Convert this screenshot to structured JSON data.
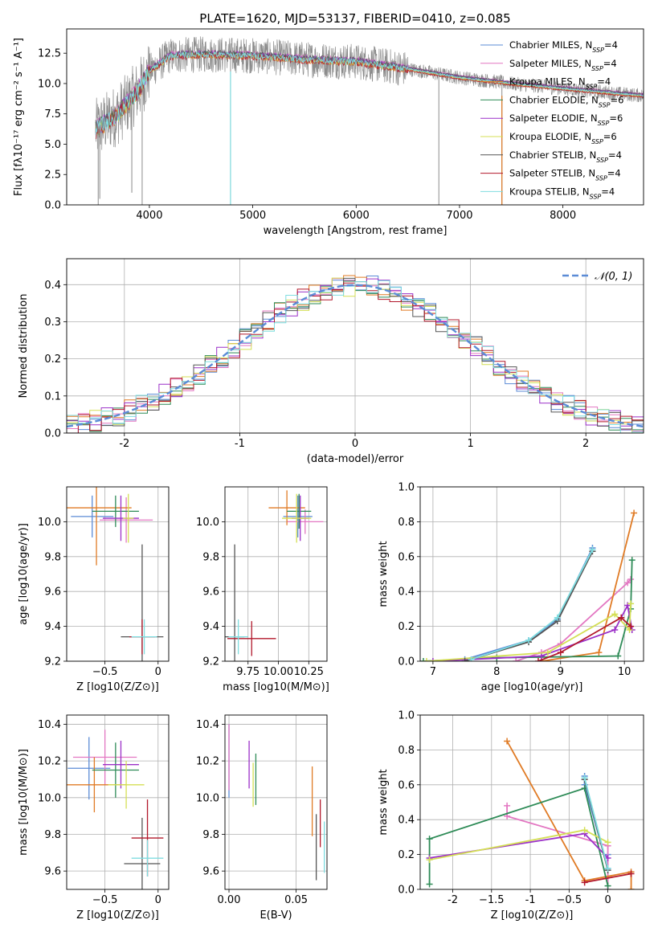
{
  "figure": {
    "title": "PLATE=1620, MJD=53137, FIBERID=0410, z=0.085"
  },
  "series_styles": [
    {
      "name": "Chabrier MILES, N$_{SSP}$=4",
      "label_main": "Chabrier MILES, N",
      "color": "#5b8bd6"
    },
    {
      "name": "Salpeter MILES, N$_{SSP}$=4",
      "label_main": "Salpeter MILES, N",
      "color": "#e377c2"
    },
    {
      "name": "Kroupa MILES, N$_{SSP}$=4",
      "label_main": "Kroupa MILES, N",
      "color": "#e07b25"
    },
    {
      "name": "Chabrier ELODIE, N$_{SSP}$=6",
      "label_main": "Chabrier ELODIE, N",
      "color": "#2e8b57"
    },
    {
      "name": "Salpeter ELODIE, N$_{SSP}$=6",
      "label_main": "Salpeter ELODIE, N",
      "color": "#9b30c8"
    },
    {
      "name": "Kroupa ELODIE, N$_{SSP}$=6",
      "label_main": "Kroupa ELODIE, N",
      "color": "#d4df55"
    },
    {
      "name": "Chabrier STELIB, N$_{SSP}$=4",
      "label_main": "Chabrier STELIB, N",
      "color": "#555555"
    },
    {
      "name": "Salpeter STELIB, N$_{SSP}$=4",
      "label_main": "Salpeter STELIB, N",
      "color": "#b2182b"
    },
    {
      "name": "Kroupa STELIB, N$_{SSP}$=4",
      "label_main": "Kroupa STELIB, N",
      "color": "#7fdde0"
    }
  ],
  "legend_subscript": "SSP",
  "legend_counts": [
    "=4",
    "=4",
    "=4",
    "=6",
    "=6",
    "=6",
    "=4",
    "=4",
    "=4"
  ],
  "chart_data": [
    {
      "id": "spectrum",
      "type": "line",
      "xlabel": "wavelength [Angstrom, rest frame]",
      "ylabel": "Flux [fλ10⁻¹⁷ erg cm⁻² s⁻¹ A⁻¹]",
      "xlim": [
        3200,
        8780
      ],
      "ylim": [
        0,
        14.5
      ],
      "xticks": [
        4000,
        5000,
        6000,
        7000,
        8000
      ],
      "yticks": [
        0.0,
        2.5,
        5.0,
        7.5,
        10.0,
        12.5
      ],
      "grid": false,
      "legend": "right",
      "data_color": "#8c8c8c",
      "model_color": "#7fdde0",
      "continuum": [
        [
          3480,
          6.2
        ],
        [
          3700,
          7.5
        ],
        [
          3900,
          9.5
        ],
        [
          4000,
          11.0
        ],
        [
          4200,
          12.3
        ],
        [
          4500,
          12.4
        ],
        [
          5000,
          12.3
        ],
        [
          5500,
          12.0
        ],
        [
          6000,
          11.8
        ],
        [
          6500,
          11.2
        ],
        [
          7000,
          10.5
        ],
        [
          7500,
          10.0
        ],
        [
          8000,
          9.6
        ],
        [
          8500,
          9.2
        ],
        [
          8780,
          9.0
        ]
      ],
      "spikes": [
        [
          3505,
          0.0
        ],
        [
          3520,
          0.5
        ],
        [
          3830,
          1.0
        ],
        [
          3930,
          0.0
        ],
        [
          4785,
          0.0
        ],
        [
          6800,
          0.0
        ],
        [
          7410,
          0.0
        ]
      ]
    },
    {
      "id": "residuals",
      "type": "line",
      "xlabel": "(data-model)/error",
      "ylabel": "Normed distribution",
      "xlim": [
        -2.5,
        2.5
      ],
      "ylim": [
        0,
        0.47
      ],
      "xticks": [
        -2,
        -1,
        0,
        1,
        2
      ],
      "yticks": [
        0.0,
        0.1,
        0.2,
        0.3,
        0.4
      ],
      "grid": true,
      "legend_label": "𝒩(0, 1)",
      "legend_color": "#5b8bd6",
      "bin_width": 0.1
    },
    {
      "id": "age-vs-Z",
      "type": "scatter",
      "xlabel": "Z [log10(Z/Z⊙)]",
      "ylabel": "age  [log10(age/yr)]",
      "xlim": [
        -0.86,
        0.1
      ],
      "ylim": [
        9.2,
        10.2
      ],
      "xticks": [
        -0.5,
        0.0
      ],
      "yticks": [
        9.2,
        9.4,
        9.6,
        9.8,
        10.0
      ],
      "grid": true,
      "points": [
        {
          "x": -0.62,
          "y": 10.03,
          "xerr": 0.2,
          "yerr": 0.12
        },
        {
          "x": -0.3,
          "y": 10.01,
          "xerr": 0.25,
          "yerr": 0.13
        },
        {
          "x": -0.58,
          "y": 10.08,
          "xerr": 0.33,
          "yerr": 0.33
        },
        {
          "x": -0.4,
          "y": 10.06,
          "xerr": 0.22,
          "yerr": 0.09
        },
        {
          "x": -0.35,
          "y": 10.02,
          "xerr": 0.17,
          "yerr": 0.13
        },
        {
          "x": -0.28,
          "y": 10.02,
          "xerr": 0.05,
          "yerr": 0.14
        },
        {
          "x": -0.15,
          "y": 9.34,
          "xerr": 0.2,
          "yerr": 0.53
        },
        {
          "x": -0.15,
          "y": 9.34,
          "xerr": 0.12,
          "yerr": 0.1
        },
        {
          "x": -0.13,
          "y": 9.34,
          "xerr": 0.12,
          "yerr": 0.1
        }
      ]
    },
    {
      "id": "age-vs-mass",
      "type": "scatter",
      "xlabel": "mass [log10(M/M⊙)]",
      "ylabel": "",
      "xlim": [
        9.56,
        10.4
      ],
      "ylim": [
        9.2,
        10.2
      ],
      "xticks": [
        9.75,
        10.0,
        10.25
      ],
      "xtick_labels": [
        "9.75",
        "10.00",
        "10.25"
      ],
      "yticks": [
        9.2,
        9.4,
        9.6,
        9.8,
        10.0
      ],
      "grid": true,
      "points": [
        {
          "x": 10.16,
          "y": 10.03,
          "xerr": 0.12,
          "yerr": 0.12
        },
        {
          "x": 10.22,
          "y": 10.0,
          "xerr": 0.15,
          "yerr": 0.07
        },
        {
          "x": 10.07,
          "y": 10.08,
          "xerr": 0.15,
          "yerr": 0.1
        },
        {
          "x": 10.17,
          "y": 10.06,
          "xerr": 0.1,
          "yerr": 0.1
        },
        {
          "x": 10.18,
          "y": 10.02,
          "xerr": 0.07,
          "yerr": 0.13
        },
        {
          "x": 10.15,
          "y": 10.02,
          "xerr": 0.12,
          "yerr": 0.14
        },
        {
          "x": 9.64,
          "y": 9.34,
          "xerr": 0.08,
          "yerr": 0.53
        },
        {
          "x": 9.78,
          "y": 9.33,
          "xerr": 0.2,
          "yerr": 0.1
        },
        {
          "x": 9.67,
          "y": 9.34,
          "xerr": 0.08,
          "yerr": 0.1
        }
      ]
    },
    {
      "id": "weight-vs-age",
      "type": "line",
      "xlabel": "age  [log10(age/yr)]",
      "ylabel": "mass weight",
      "xlim": [
        6.8,
        10.3
      ],
      "ylim": [
        0.0,
        1.0
      ],
      "xticks": [
        7,
        8,
        9,
        10
      ],
      "yticks": [
        0.0,
        0.2,
        0.4,
        0.6,
        0.8,
        1.0
      ],
      "grid": true,
      "series": [
        {
          "x": [
            7.5,
            8.5,
            8.95,
            9.5
          ],
          "y": [
            0.01,
            0.12,
            0.24,
            0.65
          ]
        },
        {
          "x": [
            8.3,
            8.7,
            9.0,
            10.05,
            10.1
          ],
          "y": [
            0.0,
            0.05,
            0.1,
            0.45,
            0.47
          ]
        },
        {
          "x": [
            8.7,
            9.6,
            10.15
          ],
          "y": [
            0.0,
            0.05,
            0.85
          ]
        },
        {
          "x": [
            6.85,
            8.0,
            9.9,
            10.1,
            10.12
          ],
          "y": [
            0.0,
            0.02,
            0.03,
            0.3,
            0.58
          ]
        },
        {
          "x": [
            7.0,
            8.7,
            9.85,
            10.05,
            10.12
          ],
          "y": [
            0.0,
            0.03,
            0.18,
            0.32,
            0.18
          ]
        },
        {
          "x": [
            6.9,
            8.8,
            9.85,
            10.08,
            10.1
          ],
          "y": [
            0.0,
            0.05,
            0.27,
            0.18,
            0.33
          ]
        },
        {
          "x": [
            7.5,
            8.5,
            8.95,
            9.5
          ],
          "y": [
            0.0,
            0.11,
            0.23,
            0.63
          ]
        },
        {
          "x": [
            8.65,
            9.0,
            9.95,
            10.1
          ],
          "y": [
            0.0,
            0.05,
            0.25,
            0.2
          ]
        },
        {
          "x": [
            7.6,
            8.5,
            8.95,
            9.5
          ],
          "y": [
            0.01,
            0.12,
            0.25,
            0.64
          ]
        }
      ]
    },
    {
      "id": "mass-vs-Z",
      "type": "scatter",
      "xlabel": "Z [log10(Z/Z⊙)]",
      "ylabel": "mass [log10(M/M⊙)]",
      "xlim": [
        -0.86,
        0.1
      ],
      "ylim": [
        9.5,
        10.45
      ],
      "xticks": [
        -0.5,
        0.0
      ],
      "yticks": [
        9.6,
        9.8,
        10.0,
        10.2,
        10.4
      ],
      "grid": true,
      "points": [
        {
          "x": -0.65,
          "y": 10.16,
          "xerr": 0.2,
          "yerr": 0.17
        },
        {
          "x": -0.5,
          "y": 10.22,
          "xerr": 0.3,
          "yerr": 0.15
        },
        {
          "x": -0.6,
          "y": 10.07,
          "xerr": 0.3,
          "yerr": 0.15
        },
        {
          "x": -0.4,
          "y": 10.15,
          "xerr": 0.22,
          "yerr": 0.15
        },
        {
          "x": -0.35,
          "y": 10.18,
          "xerr": 0.17,
          "yerr": 0.13
        },
        {
          "x": -0.3,
          "y": 10.07,
          "xerr": 0.17,
          "yerr": 0.13
        },
        {
          "x": -0.15,
          "y": 9.64,
          "xerr": 0.17,
          "yerr": 0.25
        },
        {
          "x": -0.1,
          "y": 9.78,
          "xerr": 0.15,
          "yerr": 0.21
        },
        {
          "x": -0.1,
          "y": 9.67,
          "xerr": 0.15,
          "yerr": 0.1
        }
      ]
    },
    {
      "id": "mass-vs-EBV",
      "type": "scatter",
      "xlabel": "E(B-V)",
      "ylabel": "",
      "xlim": [
        -0.003,
        0.073
      ],
      "ylim": [
        9.5,
        10.45
      ],
      "xticks": [
        0.0,
        0.05
      ],
      "xtick_labels": [
        "0.00",
        "0.05"
      ],
      "yticks": [
        9.6,
        9.8,
        10.0,
        10.2,
        10.4
      ],
      "grid": true,
      "points": [
        {
          "x": 0.0,
          "y": 10.2,
          "xerr": 0.0,
          "yerr": 0.2
        },
        {
          "x": 0.0,
          "y": 10.22,
          "xerr": 0.0,
          "yerr": 0.18
        },
        {
          "x": 0.062,
          "y": 9.98,
          "xerr": 0.0,
          "yerr": 0.19
        },
        {
          "x": 0.02,
          "y": 10.1,
          "xerr": 0.0,
          "yerr": 0.14
        },
        {
          "x": 0.015,
          "y": 10.18,
          "xerr": 0.0,
          "yerr": 0.13
        },
        {
          "x": 0.018,
          "y": 10.07,
          "xerr": 0.0,
          "yerr": 0.12
        },
        {
          "x": 0.065,
          "y": 9.73,
          "xerr": 0.0,
          "yerr": 0.18
        },
        {
          "x": 0.068,
          "y": 9.86,
          "xerr": 0.0,
          "yerr": 0.13
        },
        {
          "x": 0.071,
          "y": 9.73,
          "xerr": 0.0,
          "yerr": 0.14
        }
      ]
    },
    {
      "id": "weight-vs-Z",
      "type": "line",
      "xlabel": "Z [log10(Z/Z⊙)]",
      "ylabel": "mass weight",
      "xlim": [
        -2.42,
        0.46
      ],
      "ylim": [
        0.0,
        1.0
      ],
      "xticks": [
        -2.0,
        -1.5,
        -1.0,
        -0.5,
        0.0
      ],
      "yticks": [
        0.0,
        0.2,
        0.4,
        0.6,
        0.8,
        1.0
      ],
      "grid": true,
      "series": [
        {
          "x": [
            -0.3,
            -0.3,
            0.0,
            0.0
          ],
          "y": [
            0.65,
            0.6,
            0.12,
            0.2
          ]
        },
        {
          "x": [
            -1.3,
            -1.3,
            0.0,
            0.0
          ],
          "y": [
            0.48,
            0.42,
            0.25,
            0.0
          ]
        },
        {
          "x": [
            -1.3,
            -0.3,
            0.3,
            0.3
          ],
          "y": [
            0.85,
            0.05,
            0.1,
            0.0
          ]
        },
        {
          "x": [
            -2.3,
            -2.3,
            -0.3,
            0.0
          ],
          "y": [
            0.03,
            0.29,
            0.58,
            0.02
          ]
        },
        {
          "x": [
            -2.3,
            -0.3,
            0.0
          ],
          "y": [
            0.18,
            0.32,
            0.18
          ]
        },
        {
          "x": [
            -2.3,
            -0.3,
            0.0
          ],
          "y": [
            0.17,
            0.34,
            0.27
          ]
        },
        {
          "x": [
            -0.3,
            0.0
          ],
          "y": [
            0.63,
            0.11
          ]
        },
        {
          "x": [
            -0.3,
            0.3
          ],
          "y": [
            0.04,
            0.09
          ]
        },
        {
          "x": [
            -0.3,
            0.0
          ],
          "y": [
            0.64,
            0.12
          ]
        }
      ]
    }
  ]
}
